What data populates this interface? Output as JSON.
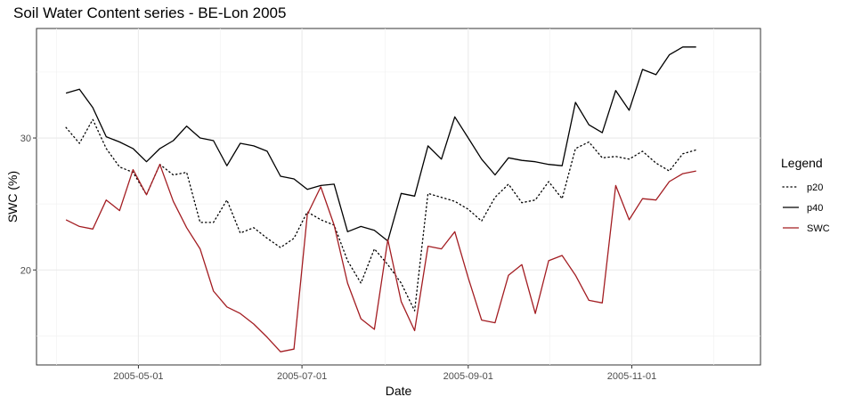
{
  "chart_data": {
    "type": "line",
    "title": "Soil Water Content series - BE-Lon 2005",
    "xlabel": "Date",
    "ylabel": "SWC (%)",
    "x_range": [
      "2005-03-24",
      "2005-12-19"
    ],
    "ylim": [
      12.8,
      38.3
    ],
    "x_ticks": [
      "2005-05-01",
      "2005-07-01",
      "2005-09-01",
      "2005-11-01"
    ],
    "x_tick_labels": [
      "2005-05-01",
      "2005-07-01",
      "2005-09-01",
      "2005-11-01"
    ],
    "y_ticks": [
      20,
      30
    ],
    "y_tick_labels": [
      "20",
      "30"
    ],
    "grid": true,
    "legend": {
      "title": "Legend",
      "position": "right"
    },
    "dates": [
      "2005-04-04",
      "2005-04-09",
      "2005-04-14",
      "2005-04-19",
      "2005-04-24",
      "2005-04-29",
      "2005-05-04",
      "2005-05-09",
      "2005-05-14",
      "2005-05-19",
      "2005-05-24",
      "2005-05-29",
      "2005-06-03",
      "2005-06-08",
      "2005-06-13",
      "2005-06-18",
      "2005-06-23",
      "2005-06-28",
      "2005-07-03",
      "2005-07-08",
      "2005-07-13",
      "2005-07-18",
      "2005-07-23",
      "2005-07-28",
      "2005-08-02",
      "2005-08-07",
      "2005-08-12",
      "2005-08-17",
      "2005-08-22",
      "2005-08-27",
      "2005-09-01",
      "2005-09-06",
      "2005-09-11",
      "2005-09-16",
      "2005-09-21",
      "2005-09-26",
      "2005-10-01",
      "2005-10-06",
      "2005-10-11",
      "2005-10-16",
      "2005-10-21",
      "2005-10-26",
      "2005-10-31",
      "2005-11-05",
      "2005-11-10",
      "2005-11-15",
      "2005-11-20",
      "2005-11-25"
    ],
    "series": [
      {
        "name": "p20",
        "color": "#000000",
        "dash": "dotted",
        "values": [
          30.8,
          29.6,
          31.4,
          29.2,
          27.8,
          27.4,
          25.7,
          28.0,
          27.2,
          27.4,
          23.6,
          23.6,
          25.3,
          22.8,
          23.2,
          22.4,
          21.7,
          22.4,
          24.4,
          23.8,
          23.4,
          20.7,
          19.0,
          21.6,
          20.4,
          19.0,
          16.9,
          25.8,
          25.5,
          25.2,
          24.6,
          23.7,
          25.5,
          26.5,
          25.1,
          25.3,
          26.7,
          25.4,
          29.2,
          29.7,
          28.5,
          28.6,
          28.4,
          29.0,
          28.1,
          27.5,
          28.8,
          29.1
        ]
      },
      {
        "name": "p40",
        "color": "#000000",
        "dash": "solid",
        "values": [
          33.4,
          33.7,
          32.3,
          30.1,
          29.7,
          29.2,
          28.2,
          29.2,
          29.8,
          30.9,
          30.0,
          29.8,
          27.9,
          29.6,
          29.4,
          29.0,
          27.1,
          26.9,
          26.1,
          26.4,
          26.5,
          22.9,
          23.3,
          23.0,
          22.2,
          25.8,
          25.6,
          29.4,
          28.4,
          31.6,
          30.0,
          28.4,
          27.2,
          28.5,
          28.3,
          28.2,
          28.0,
          27.9,
          32.7,
          31.0,
          30.4,
          33.6,
          32.1,
          35.2,
          34.8,
          36.3,
          36.9,
          36.9
        ]
      },
      {
        "name": "SWC",
        "color": "#a31d22",
        "dash": "solid",
        "values": [
          23.8,
          23.3,
          23.1,
          25.3,
          24.5,
          27.6,
          25.7,
          28.0,
          25.2,
          23.2,
          21.6,
          18.4,
          17.2,
          16.7,
          15.9,
          14.9,
          13.8,
          14.0,
          24.2,
          26.3,
          23.4,
          19.0,
          16.3,
          15.5,
          22.3,
          17.6,
          15.4,
          21.8,
          21.6,
          22.9,
          19.4,
          16.2,
          16.0,
          19.6,
          20.4,
          16.7,
          20.7,
          21.1,
          19.6,
          17.7,
          17.5,
          26.4,
          23.8,
          25.4,
          25.3,
          26.7,
          27.3,
          27.5
        ]
      }
    ]
  }
}
